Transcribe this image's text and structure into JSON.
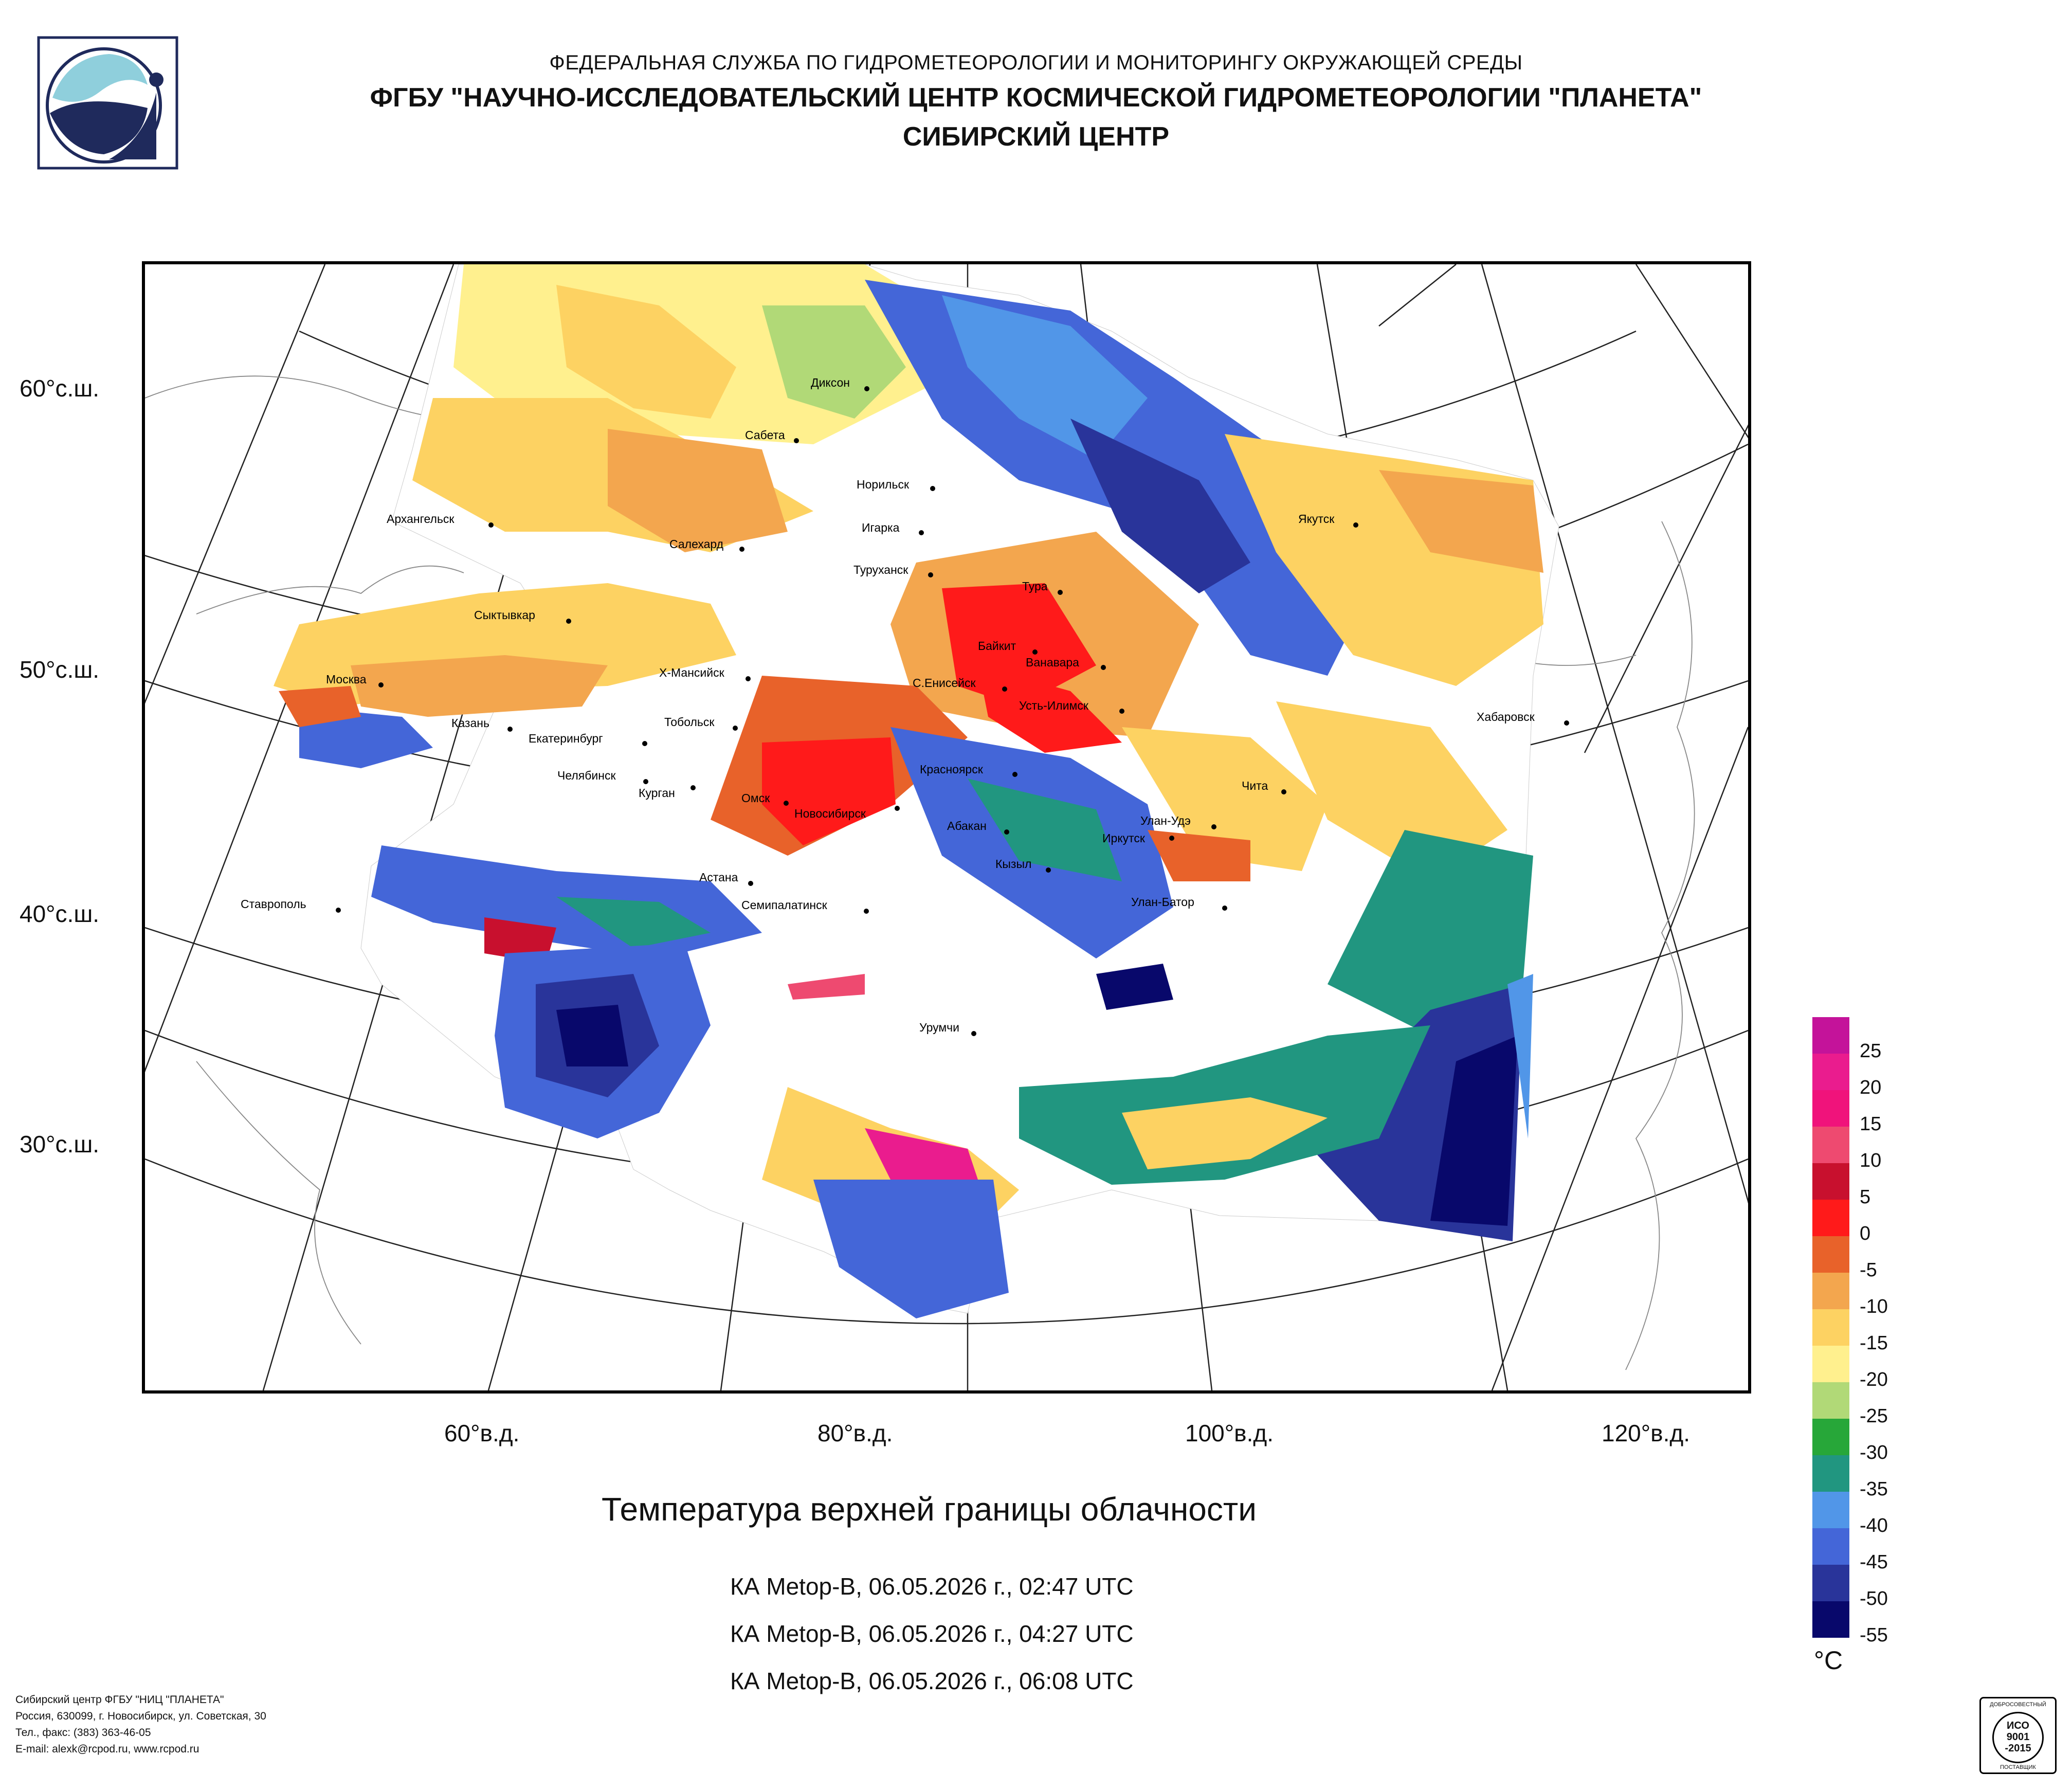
{
  "header": {
    "line1": "ФЕДЕРАЛЬНАЯ СЛУЖБА ПО ГИДРОМЕТЕОРОЛОГИИ И МОНИТОРИНГУ ОКРУЖАЮЩЕЙ СРЕДЫ",
    "line2": "ФГБУ \"НАУЧНО-ИССЛЕДОВАТЕЛЬСКИЙ ЦЕНТР КОСМИЧЕСКОЙ ГИДРОМЕТЕОРОЛОГИИ \"ПЛАНЕТА\"",
    "line3": "СИБИРСКИЙ ЦЕНТР"
  },
  "product_title": "Температура верхней границы облачности",
  "passes": [
    "КА Metop-B, 06.05.2026 г., 02:47 UTC",
    "КА Metop-B, 06.05.2026 г., 04:27 UTC",
    "КА Metop-B, 06.05.2026 г., 06:08 UTC"
  ],
  "latitude_labels": [
    "60°с.ш.",
    "50°с.ш.",
    "40°с.ш.",
    "30°с.ш."
  ],
  "longitude_labels": [
    "60°в.д.",
    "80°в.д.",
    "100°в.д.",
    "120°в.д."
  ],
  "cities": [
    "Диксон",
    "Сабета",
    "Норильск",
    "Игарка",
    "Салехард",
    "Архангельск",
    "Туруханск",
    "Тура",
    "Якутск",
    "Сыктывкар",
    "Байкит",
    "Ванавара",
    "Москва",
    "Х-Мансийск",
    "С.Енисейск",
    "Усть-Илимск",
    "Хабаровск",
    "Казань",
    "Тобольск",
    "Екатеринбург",
    "Красноярск",
    "Чита",
    "Челябинск",
    "Курган",
    "Омск",
    "Новосибирск",
    "Абакан",
    "Улан-Удэ",
    "Иркутск",
    "Кызыл",
    "Астана",
    "Улан-Батор",
    "Ставрополь",
    "Семипалатинск",
    "Урумчи"
  ],
  "legend": {
    "unit": "°C",
    "labels": [
      "25",
      "20",
      "15",
      "10",
      "5",
      "0",
      "-5",
      "-10",
      "-15",
      "-20",
      "-25",
      "-30",
      "-35",
      "-40",
      "-45",
      "-50",
      "-55"
    ],
    "colors": [
      "#c4139a",
      "#ea1c8e",
      "#f0137b",
      "#ee4a70",
      "#c8102e",
      "#ff1a1a",
      "#e8622a",
      "#f3a64e",
      "#fdd262",
      "#fff08e",
      "#b1d977",
      "#27a739",
      "#219680",
      "#5196e8",
      "#4466d8",
      "#29349a",
      "#08086b"
    ]
  },
  "footer": {
    "line1": "Сибирский центр ФГБУ \"НИЦ \"ПЛАНЕТА\"",
    "line2": "Россия, 630099, г. Новосибирск, ул. Советская, 30",
    "line3": "Тел., факс: (383) 363-46-05",
    "line4": "E-mail: alexk@rcpod.ru, www.rcpod.ru"
  },
  "iso_badge": {
    "top": "ДОБРОСОВЕСТНЫЙ",
    "mid1": "ИСО",
    "mid2": "9001",
    "mid3": "-2015",
    "bottom": "ПОСТАВЩИК"
  }
}
